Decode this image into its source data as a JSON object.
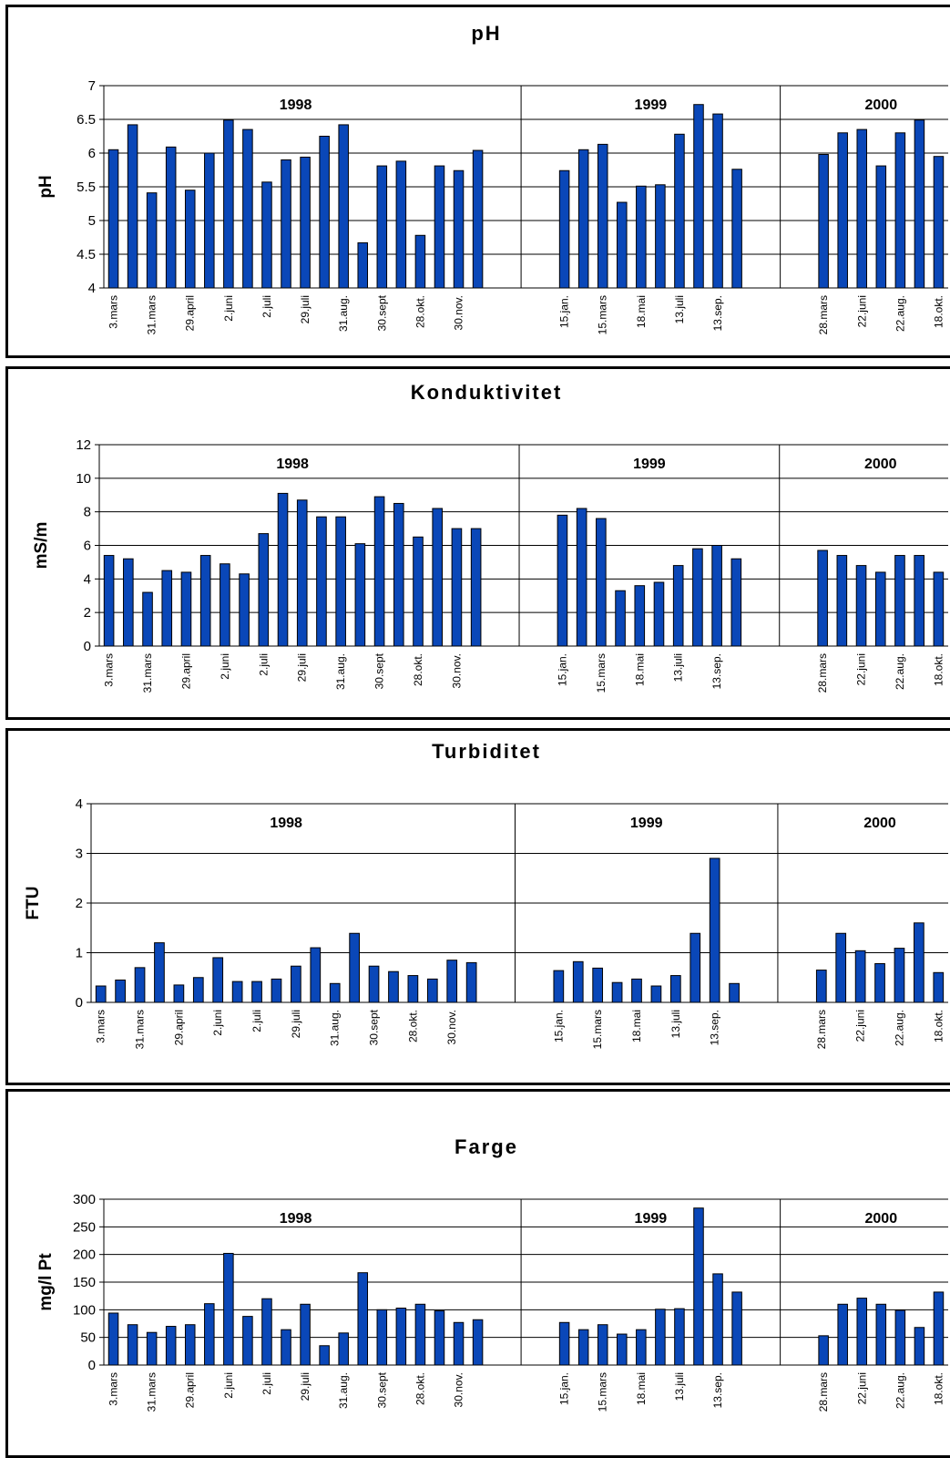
{
  "chart_data": [
    {
      "type": "bar",
      "title": "pH",
      "ylabel": "pH",
      "ylim": [
        4,
        7
      ],
      "yticks": [
        "4",
        "4.5",
        "5",
        "5.5",
        "6",
        "6.5",
        "7"
      ],
      "grid": true,
      "color": "#0a47b8",
      "groups": [
        {
          "label": "1998",
          "values": [
            6.05,
            6.42,
            5.41,
            6.09,
            5.45,
            6.0,
            6.49,
            6.35,
            5.57,
            5.9,
            5.94,
            6.25,
            6.42,
            4.67,
            5.81,
            5.88,
            4.78,
            5.81,
            5.74,
            6.04
          ],
          "tick_labels": [
            "3.mars",
            "31.mars",
            "29.april",
            "2.juni",
            "2.juli",
            "29.juli",
            "31.aug.",
            "30.sept",
            "28.okt.",
            "30.nov."
          ]
        },
        {
          "label": "1999",
          "values": [
            5.74,
            6.05,
            6.13,
            5.27,
            5.51,
            5.53,
            6.28,
            6.72,
            6.58,
            5.76
          ],
          "tick_labels": [
            "15.jan.",
            "15.mars",
            "18.mai",
            "13.juli",
            "13.sep."
          ]
        },
        {
          "label": "2000",
          "values": [
            5.98,
            6.3,
            6.35,
            5.81,
            6.3,
            6.49,
            5.95
          ],
          "tick_labels": [
            "28.mars",
            "22.juni",
            "22.aug.",
            "18.okt."
          ]
        }
      ]
    },
    {
      "type": "bar",
      "title": "Konduktivitet",
      "ylabel": "mS/m",
      "ylim": [
        0,
        12
      ],
      "yticks": [
        "0",
        "2",
        "4",
        "6",
        "8",
        "10",
        "12"
      ],
      "grid": true,
      "color": "#0a47b8",
      "groups": [
        {
          "label": "1998",
          "values": [
            5.4,
            5.2,
            3.2,
            4.5,
            4.4,
            5.4,
            4.9,
            4.3,
            6.7,
            9.1,
            8.7,
            7.7,
            7.7,
            6.1,
            8.9,
            8.5,
            6.5,
            8.2,
            7.0,
            7.0
          ],
          "tick_labels": [
            "3.mars",
            "31.mars",
            "29.april",
            "2.juni",
            "2.juli",
            "29.juli",
            "31.aug.",
            "30.sept",
            "28.okt.",
            "30.nov."
          ]
        },
        {
          "label": "1999",
          "values": [
            7.8,
            8.2,
            7.6,
            3.3,
            3.6,
            3.8,
            4.8,
            5.8,
            6.0,
            5.2
          ],
          "tick_labels": [
            "15.jan.",
            "15.mars",
            "18.mai",
            "13.juli",
            "13.sep."
          ]
        },
        {
          "label": "2000",
          "values": [
            5.7,
            5.4,
            4.8,
            4.4,
            5.4,
            5.4,
            4.4
          ],
          "tick_labels": [
            "28.mars",
            "22.juni",
            "22.aug.",
            "18.okt."
          ]
        }
      ]
    },
    {
      "type": "bar",
      "title": "Turbiditet",
      "ylabel": "FTU",
      "ylim": [
        0,
        4
      ],
      "yticks": [
        "0",
        "1",
        "2",
        "3",
        "4"
      ],
      "grid": true,
      "color": "#0a47b8",
      "groups": [
        {
          "label": "1998",
          "values": [
            0.33,
            0.45,
            0.7,
            1.2,
            0.35,
            0.5,
            0.9,
            0.42,
            0.42,
            0.47,
            0.73,
            1.1,
            0.38,
            1.39,
            0.73,
            0.62,
            0.54,
            0.47,
            0.85,
            0.8
          ],
          "tick_labels": [
            "3.mars",
            "31.mars",
            "29.april",
            "2.juni",
            "2.juli",
            "29.juli",
            "31.aug.",
            "30.sept",
            "28.okt.",
            "30.nov."
          ]
        },
        {
          "label": "1999",
          "values": [
            0.64,
            0.82,
            0.69,
            0.4,
            0.47,
            0.33,
            0.54,
            1.39,
            2.9,
            0.38
          ],
          "tick_labels": [
            "15.jan.",
            "15.mars",
            "18.mai",
            "13.juli",
            "13.sep."
          ]
        },
        {
          "label": "2000",
          "values": [
            0.65,
            1.39,
            1.04,
            0.78,
            1.09,
            1.6,
            0.6
          ],
          "tick_labels": [
            "28.mars",
            "22.juni",
            "22.aug.",
            "18.okt."
          ]
        }
      ]
    },
    {
      "type": "bar",
      "title": "Farge",
      "ylabel": "mg/l Pt",
      "ylim": [
        0,
        300
      ],
      "yticks": [
        "0",
        "50",
        "100",
        "150",
        "200",
        "250",
        "300"
      ],
      "grid": true,
      "color": "#0a47b8",
      "groups": [
        {
          "label": "1998",
          "values": [
            94,
            73,
            59,
            70,
            73,
            111,
            202,
            88,
            120,
            64,
            110,
            35,
            58,
            167,
            100,
            103,
            110,
            98,
            77,
            82
          ],
          "tick_labels": [
            "3.mars",
            "31.mars",
            "29.april",
            "2.juni",
            "2.juli",
            "29.juli",
            "31.aug.",
            "30.sept",
            "28.okt.",
            "30.nov."
          ]
        },
        {
          "label": "1999",
          "values": [
            77,
            64,
            73,
            56,
            64,
            101,
            102,
            284,
            165,
            132
          ],
          "tick_labels": [
            "15.jan.",
            "15.mars",
            "18.mai",
            "13.juli",
            "13.sep."
          ]
        },
        {
          "label": "2000",
          "values": [
            53,
            110,
            121,
            110,
            99,
            68,
            132
          ],
          "tick_labels": [
            "28.mars",
            "22.juni",
            "22.aug.",
            "18.okt."
          ]
        }
      ]
    }
  ]
}
